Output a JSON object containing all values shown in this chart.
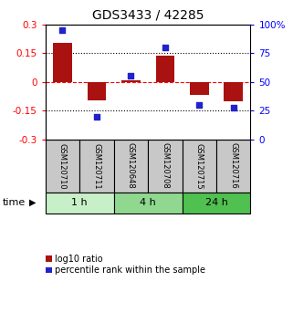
{
  "title": "GDS3433 / 42285",
  "samples": [
    "GSM120710",
    "GSM120711",
    "GSM120648",
    "GSM120708",
    "GSM120715",
    "GSM120716"
  ],
  "log10_ratio": [
    0.205,
    -0.095,
    0.008,
    0.138,
    -0.065,
    -0.1
  ],
  "percentile_rank": [
    95,
    20,
    55,
    80,
    30,
    28
  ],
  "ylim_left": [
    -0.3,
    0.3
  ],
  "ylim_right": [
    0,
    100
  ],
  "yticks_left": [
    -0.3,
    -0.15,
    0,
    0.15,
    0.3
  ],
  "yticks_right": [
    0,
    25,
    50,
    75,
    100
  ],
  "ytick_labels_left": [
    "-0.3",
    "-0.15",
    "0",
    "0.15",
    "0.3"
  ],
  "ytick_labels_right": [
    "0",
    "25",
    "50",
    "75",
    "100%"
  ],
  "hlines": [
    0.15,
    -0.15
  ],
  "hline_zero": 0,
  "time_groups": [
    {
      "label": "1 h",
      "start": 0,
      "end": 2,
      "color": "#c8f0c8"
    },
    {
      "label": "4 h",
      "start": 2,
      "end": 4,
      "color": "#90d890"
    },
    {
      "label": "24 h",
      "start": 4,
      "end": 6,
      "color": "#50c050"
    }
  ],
  "bar_color": "#aa1111",
  "scatter_color": "#2222cc",
  "sample_box_color": "#c8c8c8",
  "legend_labels": [
    "log10 ratio",
    "percentile rank within the sample"
  ],
  "xlabel_time": "time",
  "title_fontsize": 10,
  "tick_fontsize": 7.5,
  "label_fontsize": 7.5
}
